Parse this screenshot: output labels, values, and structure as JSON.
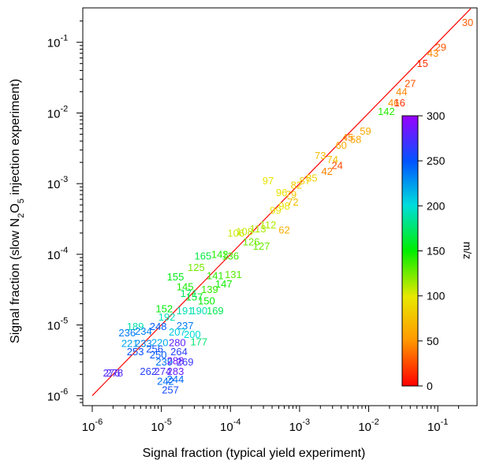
{
  "chart_data": {
    "type": "scatter",
    "marker": "text (m/z value drawn at point, colored by m/z)",
    "xscale": "log",
    "yscale": "log",
    "xlabel": "Signal fraction (typical yield experiment)",
    "ylabel": {
      "pre": "Signal fraction (slow N",
      "sub1": "2",
      "mid": "O",
      "sub2": "5",
      "post": " injection experiment)"
    },
    "xlim": [
      1e-06,
      0.3
    ],
    "ylim": [
      8e-07,
      0.25
    ],
    "x_ticks": [
      {
        "base": "10",
        "exp": "-6",
        "v": 1e-06
      },
      {
        "base": "10",
        "exp": "-5",
        "v": 1e-05
      },
      {
        "base": "10",
        "exp": "-4",
        "v": 0.0001
      },
      {
        "base": "10",
        "exp": "-3",
        "v": 0.001
      },
      {
        "base": "10",
        "exp": "-2",
        "v": 0.01
      },
      {
        "base": "10",
        "exp": "-1",
        "v": 0.1
      }
    ],
    "y_ticks": [
      {
        "base": "10",
        "exp": "-6",
        "v": 1e-06
      },
      {
        "base": "10",
        "exp": "-5",
        "v": 1e-05
      },
      {
        "base": "10",
        "exp": "-4",
        "v": 0.0001
      },
      {
        "base": "10",
        "exp": "-3",
        "v": 0.001
      },
      {
        "base": "10",
        "exp": "-2",
        "v": 0.01
      },
      {
        "base": "10",
        "exp": "-1",
        "v": 0.1
      }
    ],
    "reference_line": {
      "color": "#ff0000",
      "from": [
        1e-06,
        1e-06
      ],
      "to": [
        0.3,
        0.3
      ]
    },
    "colorbar": {
      "label": "m/z",
      "range": [
        0,
        300
      ],
      "ticks": [
        "0",
        "50",
        "100",
        "150",
        "200",
        "250",
        "300"
      ],
      "tick_values": [
        0,
        50,
        100,
        150,
        200,
        250,
        300
      ]
    },
    "points": [
      {
        "label": "30",
        "mz": 30,
        "x": 0.27,
        "y": 0.19
      },
      {
        "label": "29",
        "mz": 29,
        "x": 0.11,
        "y": 0.085
      },
      {
        "label": "43",
        "mz": 43,
        "x": 0.085,
        "y": 0.07
      },
      {
        "label": "15",
        "mz": 15,
        "x": 0.06,
        "y": 0.05
      },
      {
        "label": "27",
        "mz": 27,
        "x": 0.04,
        "y": 0.026
      },
      {
        "label": "44",
        "mz": 44,
        "x": 0.03,
        "y": 0.02
      },
      {
        "label": "46",
        "mz": 46,
        "x": 0.023,
        "y": 0.014
      },
      {
        "label": "16",
        "mz": 16,
        "x": 0.028,
        "y": 0.014
      },
      {
        "label": "142",
        "mz": 142,
        "x": 0.018,
        "y": 0.0105
      },
      {
        "label": "59",
        "mz": 59,
        "x": 0.009,
        "y": 0.0055
      },
      {
        "label": "45",
        "mz": 45,
        "x": 0.005,
        "y": 0.0045
      },
      {
        "label": "58",
        "mz": 58,
        "x": 0.0065,
        "y": 0.0042
      },
      {
        "label": "60",
        "mz": 60,
        "x": 0.004,
        "y": 0.0035
      },
      {
        "label": "73",
        "mz": 73,
        "x": 0.002,
        "y": 0.0025
      },
      {
        "label": "74",
        "mz": 74,
        "x": 0.003,
        "y": 0.0022
      },
      {
        "label": "42",
        "mz": 42,
        "x": 0.0025,
        "y": 0.0015
      },
      {
        "label": "24",
        "mz": 24,
        "x": 0.0035,
        "y": 0.0018
      },
      {
        "label": "97",
        "mz": 97,
        "x": 0.00035,
        "y": 0.0011
      },
      {
        "label": "82",
        "mz": 82,
        "x": 0.0009,
        "y": 0.00095
      },
      {
        "label": "87",
        "mz": 87,
        "x": 0.0012,
        "y": 0.0011
      },
      {
        "label": "85",
        "mz": 85,
        "x": 0.0015,
        "y": 0.0012
      },
      {
        "label": "96",
        "mz": 96,
        "x": 0.00055,
        "y": 0.00075
      },
      {
        "label": "79",
        "mz": 79,
        "x": 0.00075,
        "y": 0.0007
      },
      {
        "label": "99",
        "mz": 99,
        "x": 0.00045,
        "y": 0.00042
      },
      {
        "label": "98",
        "mz": 98,
        "x": 0.0006,
        "y": 0.00048
      },
      {
        "label": "72",
        "mz": 72,
        "x": 0.0008,
        "y": 0.00055
      },
      {
        "label": "112",
        "mz": 112,
        "x": 0.00035,
        "y": 0.00026
      },
      {
        "label": "106",
        "mz": 106,
        "x": 0.00012,
        "y": 0.0002
      },
      {
        "label": "108",
        "mz": 108,
        "x": 0.00016,
        "y": 0.00021
      },
      {
        "label": "113",
        "mz": 113,
        "x": 0.00025,
        "y": 0.00023
      },
      {
        "label": "62",
        "mz": 62,
        "x": 0.0006,
        "y": 0.00022
      },
      {
        "label": "126",
        "mz": 126,
        "x": 0.0002,
        "y": 0.00015
      },
      {
        "label": "127",
        "mz": 127,
        "x": 0.00028,
        "y": 0.00013
      },
      {
        "label": "165",
        "mz": 165,
        "x": 4e-05,
        "y": 9.5e-05
      },
      {
        "label": "143",
        "mz": 143,
        "x": 7e-05,
        "y": 0.0001
      },
      {
        "label": "136",
        "mz": 136,
        "x": 0.0001,
        "y": 9.5e-05
      },
      {
        "label": "125",
        "mz": 125,
        "x": 3.2e-05,
        "y": 6.5e-05
      },
      {
        "label": "155",
        "mz": 155,
        "x": 1.6e-05,
        "y": 4.8e-05
      },
      {
        "label": "141",
        "mz": 141,
        "x": 6e-05,
        "y": 5e-05
      },
      {
        "label": "131",
        "mz": 131,
        "x": 0.00011,
        "y": 5.2e-05
      },
      {
        "label": "145",
        "mz": 145,
        "x": 2.2e-05,
        "y": 3.5e-05
      },
      {
        "label": "139",
        "mz": 139,
        "x": 5e-05,
        "y": 3.2e-05
      },
      {
        "label": "147",
        "mz": 147,
        "x": 8e-05,
        "y": 3.8e-05
      },
      {
        "label": "157",
        "mz": 157,
        "x": 3e-05,
        "y": 2.5e-05
      },
      {
        "label": "171",
        "mz": 171,
        "x": 2.5e-05,
        "y": 2.8e-05
      },
      {
        "label": "150",
        "mz": 150,
        "x": 4.5e-05,
        "y": 2.2e-05
      },
      {
        "label": "169",
        "mz": 169,
        "x": 6e-05,
        "y": 1.6e-05
      },
      {
        "label": "152",
        "mz": 152,
        "x": 1.1e-05,
        "y": 1.7e-05
      },
      {
        "label": "192",
        "mz": 192,
        "x": 1.2e-05,
        "y": 1.3e-05
      },
      {
        "label": "191",
        "mz": 191,
        "x": 2.2e-05,
        "y": 1.6e-05
      },
      {
        "label": "190",
        "mz": 190,
        "x": 3.5e-05,
        "y": 1.6e-05
      },
      {
        "label": "189",
        "mz": 189,
        "x": 4.2e-06,
        "y": 9.5e-06
      },
      {
        "label": "248",
        "mz": 248,
        "x": 9e-06,
        "y": 9.5e-06
      },
      {
        "label": "237",
        "mz": 237,
        "x": 2.2e-05,
        "y": 9.8e-06
      },
      {
        "label": "234",
        "mz": 234,
        "x": 5.5e-06,
        "y": 8.2e-06
      },
      {
        "label": "236",
        "mz": 236,
        "x": 3.2e-06,
        "y": 7.8e-06
      },
      {
        "label": "207",
        "mz": 207,
        "x": 1.7e-05,
        "y": 8e-06
      },
      {
        "label": "200",
        "mz": 200,
        "x": 2.8e-05,
        "y": 7.4e-06
      },
      {
        "label": "221",
        "mz": 221,
        "x": 3.5e-06,
        "y": 5.5e-06
      },
      {
        "label": "233",
        "mz": 233,
        "x": 5.5e-06,
        "y": 5.5e-06
      },
      {
        "label": "220",
        "mz": 220,
        "x": 9.5e-06,
        "y": 5.6e-06
      },
      {
        "label": "280",
        "mz": 280,
        "x": 1.7e-05,
        "y": 5.6e-06
      },
      {
        "label": "177",
        "mz": 177,
        "x": 3.5e-05,
        "y": 5.8e-06
      },
      {
        "label": "253",
        "mz": 253,
        "x": 4.2e-06,
        "y": 4.2e-06
      },
      {
        "label": "256",
        "mz": 256,
        "x": 8e-06,
        "y": 4.6e-06
      },
      {
        "label": "264",
        "mz": 264,
        "x": 1.8e-05,
        "y": 4.2e-06
      },
      {
        "label": "250",
        "mz": 250,
        "x": 9e-06,
        "y": 3.8e-06
      },
      {
        "label": "239",
        "mz": 239,
        "x": 1.1e-05,
        "y": 3e-06
      },
      {
        "label": "288",
        "mz": 288,
        "x": 1.6e-05,
        "y": 3.1e-06
      },
      {
        "label": "269",
        "mz": 269,
        "x": 2.2e-05,
        "y": 3e-06
      },
      {
        "label": "262",
        "mz": 262,
        "x": 6.5e-06,
        "y": 2.2e-06
      },
      {
        "label": "274",
        "mz": 274,
        "x": 1.05e-05,
        "y": 2.2e-06
      },
      {
        "label": "283",
        "mz": 283,
        "x": 1.6e-05,
        "y": 2.2e-06
      },
      {
        "label": "242",
        "mz": 242,
        "x": 1.15e-05,
        "y": 1.6e-06
      },
      {
        "label": "244",
        "mz": 244,
        "x": 1.6e-05,
        "y": 1.7e-06
      },
      {
        "label": "257",
        "mz": 257,
        "x": 1.35e-05,
        "y": 1.2e-06
      },
      {
        "label": "276",
        "mz": 276,
        "x": 1.9e-06,
        "y": 2.1e-06
      },
      {
        "label": "278",
        "mz": 278,
        "x": 2.1e-06,
        "y": 2.1e-06
      }
    ]
  }
}
